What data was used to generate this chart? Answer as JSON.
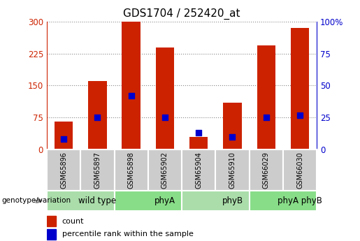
{
  "title": "GDS1704 / 252420_at",
  "samples": [
    "GSM65896",
    "GSM65897",
    "GSM65898",
    "GSM65902",
    "GSM65904",
    "GSM65910",
    "GSM66029",
    "GSM66030"
  ],
  "counts": [
    65,
    160,
    300,
    240,
    30,
    110,
    245,
    285
  ],
  "percentiles": [
    8,
    25,
    42,
    25,
    13,
    10,
    25,
    27
  ],
  "groups": [
    {
      "label": "wild type",
      "start": 0,
      "end": 2,
      "color": "#aaddaa"
    },
    {
      "label": "phyA",
      "start": 2,
      "end": 4,
      "color": "#88dd88"
    },
    {
      "label": "phyB",
      "start": 4,
      "end": 6,
      "color": "#aaddaa"
    },
    {
      "label": "phyA phyB",
      "start": 6,
      "end": 8,
      "color": "#88dd88"
    }
  ],
  "ylim_left": [
    0,
    300
  ],
  "ylim_right": [
    0,
    100
  ],
  "yticks_left": [
    0,
    75,
    150,
    225,
    300
  ],
  "yticks_right": [
    0,
    25,
    50,
    75,
    100
  ],
  "bar_color": "#cc2200",
  "dot_color": "#0000cc",
  "grid_color": "#888888",
  "axis_left_color": "#cc2200",
  "axis_right_color": "#0000cc",
  "title_fontsize": 11,
  "bar_width": 0.55,
  "dot_size": 28,
  "sample_box_color": "#cccccc",
  "legend_label_count": "count",
  "legend_label_percentile": "percentile rank within the sample"
}
